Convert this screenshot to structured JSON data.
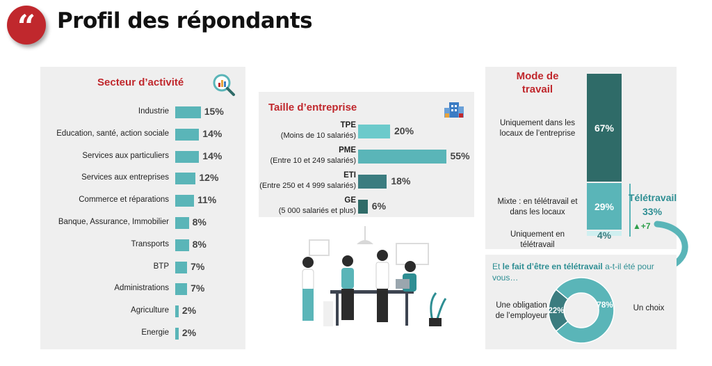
{
  "page": {
    "title": "Profil des répondants",
    "quote_glyph": "“"
  },
  "secteur": {
    "title": "Secteur d’activité",
    "icon": "chart-magnifier-icon"
  },
  "taille": {
    "title": "Taille d’entreprise",
    "icon": "buildings-icon",
    "items": [
      {
        "name": "TPE",
        "sub": "(Moins de 10 salariés)"
      },
      {
        "name": "PME",
        "sub": "(Entre 10 et 249 salariés)"
      },
      {
        "name": "ETI",
        "sub": "(Entre 250 et 4 999 salariés)"
      },
      {
        "name": "GE",
        "sub": "(5 000 salariés et plus)"
      }
    ]
  },
  "mode": {
    "title": "Mode de travail",
    "teletravail_title": "Télétravail",
    "teletravail_value": "33%",
    "teletravail_delta": "▲+7"
  },
  "question": {
    "prefix": "Et ",
    "bold": "le fait d’être en télétravail",
    "suffix": " a-t-il été pour vous…"
  },
  "colors": {
    "accent_red": "#c0282d",
    "teal_light": "#5ab5b8",
    "teal_mid": "#6ccacb",
    "teal_dark": "#2f6b68",
    "teal_darker": "#3b7c7f",
    "panel_bg": "#efefef"
  },
  "chart_data": [
    {
      "type": "bar",
      "orientation": "horizontal",
      "title": "Secteur d’activité",
      "categories": [
        "Industrie",
        "Education, santé, action sociale",
        "Services aux particuliers",
        "Services aux entreprises",
        "Commerce et réparations",
        "Banque, Assurance, Immobilier",
        "Transports",
        "BTP",
        "Administrations",
        "Agriculture",
        "Energie"
      ],
      "values": [
        15,
        14,
        14,
        12,
        11,
        8,
        8,
        7,
        7,
        2,
        2
      ],
      "value_labels": [
        "15%",
        "14%",
        "14%",
        "12%",
        "11%",
        "8%",
        "8%",
        "7%",
        "7%",
        "2%",
        "2%"
      ],
      "unit": "%"
    },
    {
      "type": "bar",
      "orientation": "horizontal",
      "title": "Taille d’entreprise",
      "categories": [
        "TPE",
        "PME",
        "ETI",
        "GE"
      ],
      "values": [
        20,
        55,
        18,
        6
      ],
      "value_labels": [
        "20%",
        "55%",
        "18%",
        "6%"
      ],
      "unit": "%"
    },
    {
      "type": "bar",
      "orientation": "stacked-vertical",
      "title": "Mode de travail",
      "categories": [
        "Uniquement dans les locaux de l’entreprise",
        "Mixte : en télétravail et dans les locaux",
        "Uniquement en télétravail"
      ],
      "values": [
        67,
        29,
        4
      ],
      "value_labels": [
        "67%",
        "29%",
        "4%"
      ],
      "unit": "%"
    },
    {
      "type": "pie",
      "variant": "donut",
      "categories": [
        "Une obligation de l’employeur",
        "Un choix"
      ],
      "values": [
        22,
        78
      ],
      "value_labels": [
        "22%",
        "78%"
      ],
      "unit": "%"
    }
  ]
}
